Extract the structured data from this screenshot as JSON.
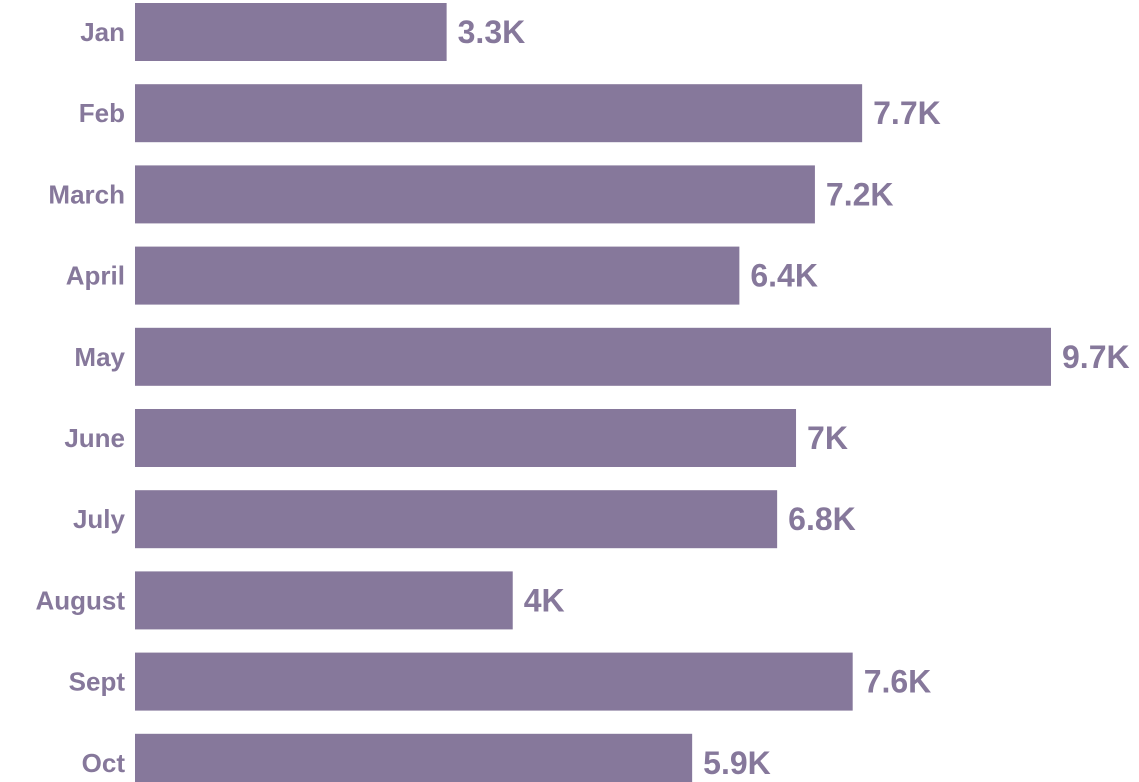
{
  "chart_data": {
    "type": "bar",
    "orientation": "horizontal",
    "categories": [
      "Jan",
      "Feb",
      "March",
      "April",
      "May",
      "June",
      "July",
      "August",
      "Sept",
      "Oct"
    ],
    "values": [
      3.3,
      7.7,
      7.2,
      6.4,
      9.7,
      7.0,
      6.8,
      4.0,
      7.6,
      5.9
    ],
    "value_labels": [
      "3.3K",
      "7.7K",
      "7.2K",
      "6.4K",
      "9.7K",
      "7K",
      "6.8K",
      "4K",
      "7.6K",
      "5.9K"
    ],
    "unit": "K",
    "xlim": [
      0,
      9.7
    ],
    "grid": false,
    "legend": "none",
    "colors": {
      "bar": "#86789b",
      "category_label": "#86789b",
      "value_label": "#86789b"
    }
  }
}
